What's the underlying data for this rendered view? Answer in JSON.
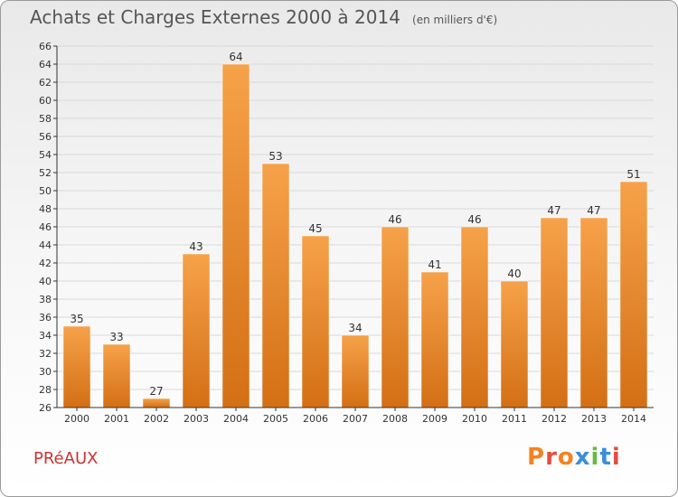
{
  "header": {
    "title": "Achats et Charges Externes 2000 à 2014",
    "subtitle": "(en milliers d'€)"
  },
  "footer": {
    "commune": "PRéAUX",
    "logo_text": "Proxiti"
  },
  "colors": {
    "bar_light": "#f6a24a",
    "bar_dark": "#d46f14",
    "axis": "#333333",
    "grid": "#d9d9d9",
    "commune_text": "#cc3333",
    "logo_letters": [
      "#f58220",
      "#e84c3d",
      "#f58220",
      "#3a8fd4",
      "#6bb843",
      "#3a8fd4",
      "#e84c3d"
    ]
  },
  "chart_data": {
    "type": "bar",
    "title": "Achats et Charges Externes 2000 à 2014",
    "subtitle": "(en milliers d'€)",
    "categories": [
      "2000",
      "2001",
      "2002",
      "2003",
      "2004",
      "2005",
      "2006",
      "2007",
      "2008",
      "2009",
      "2010",
      "2011",
      "2012",
      "2013",
      "2014"
    ],
    "values": [
      35,
      33,
      27,
      43,
      64,
      53,
      45,
      34,
      46,
      41,
      46,
      40,
      47,
      47,
      51
    ],
    "ylim": [
      26,
      66
    ],
    "ytick_step": 2,
    "grid": true,
    "legend": "none",
    "data_labels": true
  }
}
